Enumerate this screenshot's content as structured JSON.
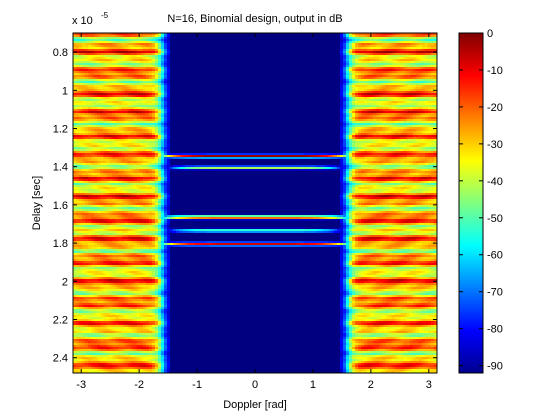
{
  "chart_data": {
    "type": "heatmap",
    "title": "N=16, Binomial design, output in dB",
    "xlabel": "Doppler [rad]",
    "ylabel": "Delay [sec]",
    "exponent_label": "x 10",
    "exponent_power": "-5",
    "xlim": [
      -3.14159,
      3.14159
    ],
    "ylim": [
      0.7,
      2.48
    ],
    "y_reversed": true,
    "x_ticks": [
      -3,
      -2,
      -1,
      0,
      1,
      2,
      3
    ],
    "x_tick_labels": [
      "-3",
      "-2",
      "-1",
      "0",
      "1",
      "2",
      "3"
    ],
    "y_ticks": [
      0.8,
      1.0,
      1.2,
      1.4,
      1.6,
      1.8,
      2.0,
      2.2,
      2.4
    ],
    "y_tick_labels": [
      "0.8",
      "1",
      "1.2",
      "1.4",
      "1.6",
      "1.8",
      "2",
      "2.2",
      "2.4"
    ],
    "colorbar": {
      "range": [
        -92,
        0
      ],
      "ticks": [
        0,
        -10,
        -20,
        -30,
        -40,
        -50,
        -60,
        -70,
        -80,
        -90
      ],
      "tick_labels": [
        "0",
        "-10",
        "-20",
        "-30",
        "-40",
        "-50",
        "-60",
        "-70",
        "-80",
        "-90"
      ],
      "colormap": "jet"
    },
    "floor_db": -92,
    "side_regions": {
      "inner_edge_doppler": 1.6,
      "level_db": -28
    },
    "ridges": [
      {
        "delay": 1.345,
        "half_width": 1.75,
        "peak_db": 0
      },
      {
        "delay": 1.405,
        "half_width": 1.55,
        "peak_db": -40
      },
      {
        "delay": 1.665,
        "half_width": 1.75,
        "peak_db": -8
      },
      {
        "delay": 1.735,
        "half_width": 1.55,
        "peak_db": -45
      },
      {
        "delay": 1.805,
        "half_width": 1.75,
        "peak_db": -8
      }
    ]
  }
}
